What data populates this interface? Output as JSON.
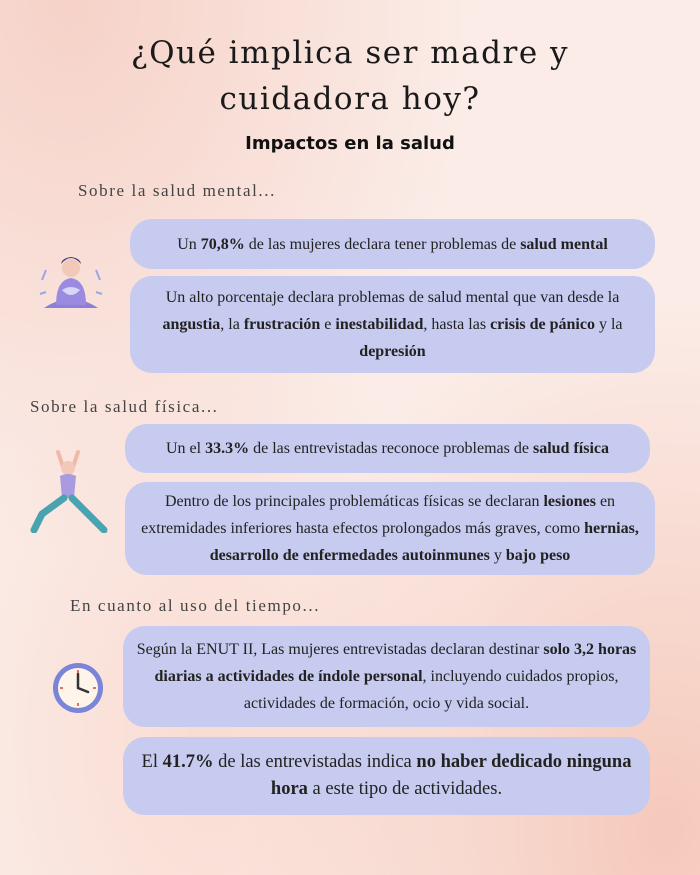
{
  "title": "¿Qué implica ser madre y cuidadora hoy?",
  "subtitle": "Impactos en la salud",
  "sections": [
    {
      "heading": "Sobre la salud mental...",
      "cards": [
        [
          {
            "text": "Un "
          },
          {
            "text": "70,8%",
            "bold": true
          },
          {
            "text": " de las mujeres declara tener problemas de "
          },
          {
            "text": "salud mental",
            "bold": true
          }
        ],
        [
          {
            "text": "Un alto porcentaje declara problemas de salud mental que van desde la "
          },
          {
            "text": "angustia",
            "bold": true
          },
          {
            "text": ", la "
          },
          {
            "text": "frustración",
            "bold": true
          },
          {
            "text": " e "
          },
          {
            "text": "inestabilidad",
            "bold": true
          },
          {
            "text": ", hasta las "
          },
          {
            "text": "crisis de pánico",
            "bold": true
          },
          {
            "text": " y la "
          },
          {
            "text": "depresión",
            "bold": true
          }
        ]
      ]
    },
    {
      "heading": "Sobre la salud física...",
      "cards": [
        [
          {
            "text": "Un el "
          },
          {
            "text": "33.3%",
            "bold": true
          },
          {
            "text": " de las entrevistadas reconoce problemas de "
          },
          {
            "text": "salud física",
            "bold": true
          }
        ],
        [
          {
            "text": "Dentro de los principales problemáticas físicas se declaran "
          },
          {
            "text": "lesiones",
            "bold": true
          },
          {
            "text": " en extremidades inferiores hasta efectos prolongados más graves, como "
          },
          {
            "text": "hernias, desarrollo de enfermedades autoinmunes",
            "bold": true
          },
          {
            "text": " y "
          },
          {
            "text": "bajo peso",
            "bold": true
          }
        ]
      ]
    },
    {
      "heading": "En cuanto al uso del tiempo...",
      "cards": [
        [
          {
            "text": "Según la ENUT II, Las mujeres entrevistadas declaran destinar "
          },
          {
            "text": "solo 3,2 horas diarias a actividades de índole personal",
            "bold": true
          },
          {
            "text": ", incluyendo cuidados propios, actividades de formación, ocio  y vida social."
          }
        ],
        [
          {
            "text": "El "
          },
          {
            "text": "41.7%",
            "bold": true
          },
          {
            "text": " de las entrevistadas indica "
          },
          {
            "text": "no haber dedicado ninguna hora",
            "bold": true
          },
          {
            "text": " a este tipo de actividades."
          }
        ]
      ]
    }
  ]
}
